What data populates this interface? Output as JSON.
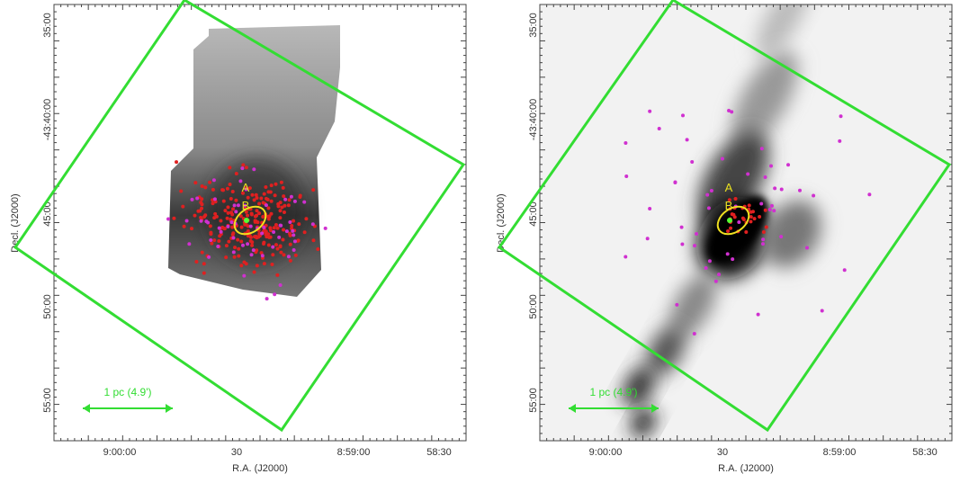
{
  "panels": [
    {
      "x_label": "R.A. (J2000)",
      "y_label": "Decl. (J2000)",
      "x_ticks": [
        "9:00:00",
        "30",
        "8:59:00",
        "58:30"
      ],
      "y_ticks": [
        "35:00",
        "-43:40:00",
        "45:00",
        "50:00",
        "55:00"
      ],
      "labels": [
        "A",
        "B"
      ],
      "scale_bar": "1 pc (4.9')"
    },
    {
      "x_label": "R.A. (J2000)",
      "y_label": "Decl. (J2000)",
      "x_ticks": [
        "9:00:00",
        "30",
        "8:59:00",
        "58:30"
      ],
      "y_ticks": [
        "35:00",
        "-43:40:00",
        "45:00",
        "50:00",
        "55:00"
      ],
      "labels": [
        "A",
        "B"
      ],
      "scale_bar": "1 pc (4.9')"
    }
  ]
}
